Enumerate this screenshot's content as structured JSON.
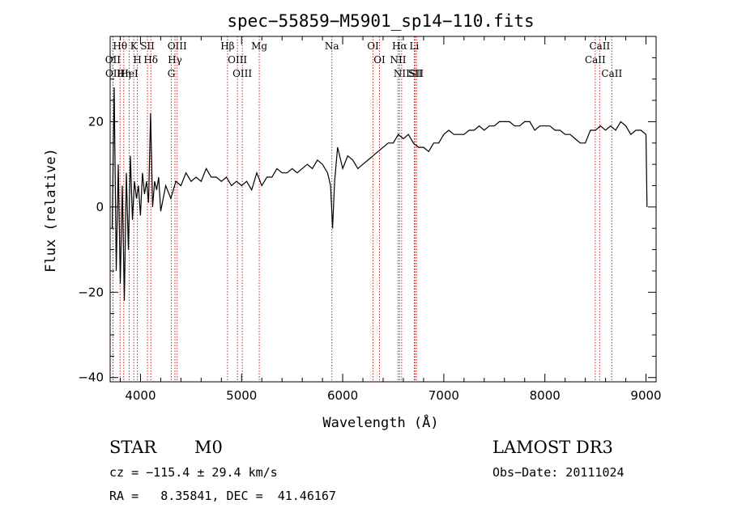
{
  "chart_data": {
    "type": "line",
    "title": "spec−55859−M5901_sp14−110.fits",
    "xlabel": "Wavelength (Å)",
    "ylabel": "Flux (relative)",
    "xlim": [
      3700,
      9100
    ],
    "ylim": [
      -41,
      40
    ],
    "x_ticks": [
      4000,
      5000,
      6000,
      7000,
      8000,
      9000
    ],
    "x_tick_labels": [
      "4000",
      "5000",
      "6000",
      "7000",
      "8000",
      "9000"
    ],
    "y_ticks": [
      -40,
      -20,
      0,
      20
    ],
    "y_tick_labels": [
      "−40",
      "−20",
      "0",
      "20"
    ],
    "series": [
      {
        "name": "flux",
        "x": [
          3720,
          3740,
          3760,
          3780,
          3800,
          3820,
          3840,
          3860,
          3880,
          3900,
          3920,
          3940,
          3960,
          3980,
          4000,
          4020,
          4040,
          4060,
          4080,
          4100,
          4120,
          4140,
          4160,
          4180,
          4200,
          4250,
          4300,
          4350,
          4400,
          4450,
          4500,
          4550,
          4600,
          4650,
          4700,
          4750,
          4800,
          4850,
          4900,
          4950,
          5000,
          5050,
          5100,
          5150,
          5200,
          5250,
          5300,
          5350,
          5400,
          5450,
          5500,
          5550,
          5600,
          5650,
          5700,
          5750,
          5800,
          5850,
          5880,
          5900,
          5920,
          5950,
          6000,
          6050,
          6100,
          6150,
          6200,
          6250,
          6300,
          6350,
          6400,
          6450,
          6500,
          6550,
          6600,
          6650,
          6700,
          6750,
          6800,
          6850,
          6900,
          6950,
          7000,
          7050,
          7100,
          7150,
          7200,
          7250,
          7300,
          7350,
          7400,
          7450,
          7500,
          7550,
          7600,
          7650,
          7700,
          7750,
          7800,
          7850,
          7900,
          7950,
          8000,
          8050,
          8100,
          8150,
          8200,
          8250,
          8300,
          8350,
          8400,
          8450,
          8500,
          8550,
          8600,
          8650,
          8700,
          8750,
          8800,
          8850,
          8900,
          8950,
          9000,
          9010
        ],
        "y": [
          -5,
          28,
          -15,
          10,
          -18,
          5,
          -22,
          8,
          -10,
          12,
          -3,
          6,
          2,
          5,
          -2,
          8,
          3,
          6,
          1,
          22,
          0,
          6,
          4,
          7,
          -1,
          5,
          2,
          6,
          5,
          8,
          6,
          7,
          6,
          9,
          7,
          7,
          6,
          7,
          5,
          6,
          5,
          6,
          4,
          8,
          5,
          7,
          7,
          9,
          8,
          8,
          9,
          8,
          9,
          10,
          9,
          11,
          10,
          8,
          5,
          -5,
          6,
          14,
          9,
          12,
          11,
          9,
          10,
          11,
          12,
          13,
          14,
          15,
          15,
          17,
          16,
          17,
          15,
          14,
          14,
          13,
          15,
          15,
          17,
          18,
          17,
          17,
          17,
          18,
          18,
          19,
          18,
          19,
          19,
          20,
          20,
          20,
          19,
          19,
          20,
          20,
          18,
          19,
          19,
          19,
          18,
          18,
          17,
          17,
          16,
          15,
          15,
          18,
          18,
          19,
          18,
          19,
          18,
          20,
          19,
          17,
          18,
          18,
          17,
          0
        ]
      }
    ],
    "line_markers": [
      {
        "label": "Hθ",
        "wavelength": 3798
      },
      {
        "label": "OII",
        "wavelength": 3727
      },
      {
        "label": "OII",
        "wavelength": 3729
      },
      {
        "label": "K",
        "wavelength": 3934
      },
      {
        "label": "HeI",
        "wavelength": 3889
      },
      {
        "label": "Hη",
        "wavelength": 3835
      },
      {
        "label": "H",
        "wavelength": 3969
      },
      {
        "label": "SII",
        "wavelength": 4069
      },
      {
        "label": "Hδ",
        "wavelength": 4102
      },
      {
        "label": "OIII",
        "wavelength": 4363
      },
      {
        "label": "Hγ",
        "wavelength": 4341
      },
      {
        "label": "G",
        "wavelength": 4305
      },
      {
        "label": "Hβ",
        "wavelength": 4861
      },
      {
        "label": "OIII",
        "wavelength": 4959
      },
      {
        "label": "OIII",
        "wavelength": 5007
      },
      {
        "label": "Mg",
        "wavelength": 5175
      },
      {
        "label": "Na",
        "wavelength": 5893
      },
      {
        "label": "OI",
        "wavelength": 6300
      },
      {
        "label": "OI",
        "wavelength": 6364
      },
      {
        "label": "Hα",
        "wavelength": 6563
      },
      {
        "label": "NII",
        "wavelength": 6548
      },
      {
        "label": "NII",
        "wavelength": 6583
      },
      {
        "label": "SII",
        "wavelength": 6716
      },
      {
        "label": "Li",
        "wavelength": 6708
      },
      {
        "label": "SII",
        "wavelength": 6731
      },
      {
        "label": "CaII",
        "wavelength": 8542
      },
      {
        "label": "CaII",
        "wavelength": 8498
      },
      {
        "label": "CaII",
        "wavelength": 8662
      }
    ]
  },
  "info": {
    "object_class": "STAR",
    "subclass": "M0",
    "survey": "LAMOST DR3",
    "redshift_line": "cz = −115.4 ± 29.4 km/s",
    "obs_date_line": "Obs−Date: 20111024",
    "coords_line": "RA =   8.35841, DEC =  41.46167"
  }
}
